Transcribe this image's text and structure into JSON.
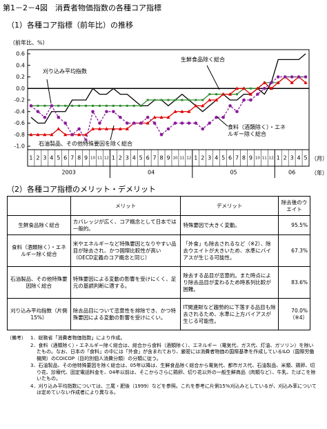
{
  "header": {
    "title": "第1－2－4図　消費者物価指数の各種コア指標"
  },
  "section1": {
    "heading": "（1）各種コア指標（前年比）の推移"
  },
  "chart_data": {
    "type": "line",
    "y_label": "（前年比、%）",
    "x_unit": "（月）",
    "year_unit": "（年）",
    "year_labels": [
      "2003",
      "04",
      "05",
      "06"
    ],
    "categories": [
      "1",
      "2",
      "3",
      "4",
      "5",
      "6",
      "7",
      "8",
      "9",
      "10",
      "11",
      "12",
      "1",
      "2",
      "3",
      "4",
      "5",
      "6",
      "7",
      "8",
      "9",
      "10",
      "11",
      "12",
      "1",
      "2",
      "3",
      "4",
      "5",
      "6",
      "7",
      "8",
      "9",
      "10",
      "11",
      "12",
      "1",
      "2",
      "3",
      "4",
      "5"
    ],
    "ylim": [
      -1,
      0.6
    ],
    "yticks": [
      {
        "value": -1,
        "label": "-1.0"
      },
      -0.8,
      -0.6,
      -0.4,
      -0.2,
      {
        "value": 0,
        "label": "0.0"
      },
      0.2,
      0.4,
      0.6
    ],
    "series": [
      {
        "name": "生鮮食品除く総合",
        "color": "#000000",
        "marker": "none",
        "dash": false,
        "values": [
          -0.5,
          -0.6,
          -0.6,
          -0.4,
          -0.4,
          -0.4,
          -0.2,
          -0.2,
          -0.2,
          0.0,
          -0.1,
          -0.1,
          0.0,
          -0.1,
          -0.1,
          -0.2,
          -0.3,
          -0.3,
          -0.2,
          -0.2,
          -0.3,
          -0.2,
          -0.1,
          -0.2,
          -0.3,
          -0.4,
          -0.3,
          -0.2,
          -0.1,
          -0.2,
          -0.2,
          -0.1,
          -0.1,
          0.0,
          -0.1,
          0.1,
          0.5,
          0.5,
          0.5,
          0.5,
          0.6
        ]
      },
      {
        "name": "刈り込み平均指数",
        "color": "#2e8b2e",
        "marker": "square",
        "dash": false,
        "values": [
          -0.3,
          -0.3,
          -0.3,
          -0.3,
          -0.3,
          -0.3,
          -0.3,
          -0.3,
          -0.3,
          -0.3,
          -0.3,
          -0.3,
          -0.3,
          -0.3,
          -0.3,
          -0.3,
          -0.3,
          -0.2,
          -0.2,
          -0.2,
          -0.2,
          -0.2,
          -0.2,
          -0.2,
          -0.2,
          -0.2,
          -0.1,
          -0.1,
          -0.1,
          -0.1,
          -0.1,
          0.0,
          0.0,
          0.0,
          0.1,
          0.1,
          0.1,
          0.2,
          0.2,
          0.2,
          0.2
        ]
      },
      {
        "name": "食料（酒類除く）・エネルギー除く総合",
        "color": "#e00000",
        "marker": "triangle",
        "dash": false,
        "values": [
          -0.8,
          -0.8,
          -0.8,
          -0.8,
          -0.7,
          -0.8,
          -0.8,
          -0.8,
          -0.8,
          -0.7,
          -0.7,
          -0.7,
          -0.7,
          -0.7,
          -0.7,
          -0.6,
          -0.6,
          -0.6,
          -0.5,
          -0.5,
          -0.5,
          -0.4,
          -0.4,
          -0.4,
          -0.3,
          -0.3,
          -0.2,
          -0.2,
          -0.1,
          -0.1,
          0.0,
          0.0,
          -0.1,
          0.0,
          0.1,
          0.0,
          0.1,
          0.2,
          0.1,
          0.2,
          0.1
        ]
      },
      {
        "name": "石油製品、その他特殊要因を除く総合",
        "color": "#8b1a9b",
        "marker": "circle",
        "dash": true,
        "values": [
          -0.3,
          -0.4,
          -0.5,
          -0.3,
          -0.5,
          -0.6,
          -0.8,
          -0.7,
          -0.9,
          -0.4,
          -0.6,
          -0.4,
          -0.4,
          -0.5,
          -0.6,
          -0.6,
          -0.6,
          -0.5,
          -0.6,
          -0.8,
          -0.7,
          -0.6,
          -0.6,
          -0.6,
          -0.6,
          -0.7,
          -0.6,
          -0.5,
          -0.5,
          -0.3,
          -0.4,
          -0.2,
          -0.2,
          -0.1,
          0.0,
          0.1,
          0.2,
          0.2,
          0.2,
          0.2,
          0.2
        ]
      }
    ]
  },
  "section2": {
    "heading": "（2）各種コア指標のメリット・デメリット"
  },
  "table": {
    "header": [
      "メリット",
      "デメリット",
      "除去後のウエイト"
    ],
    "rows": [
      [
        "生鮮食品除く総合",
        "カバレッジが広く、コア概念として日本では一般的。",
        "特殊要因で大きく変動。",
        "95.5%"
      ],
      [
        "食料（酒類除く）・エネルギー除く総合",
        "米やエネルギーなど特殊要因となりやすい品目が除去され、かつ国際比較性が高い（OECD定義のコア概念と同じ）",
        "「外食」も除去されるなど（※2）、除去ウエイトが大きいため、水準にバイアスが生じる可能性。",
        "67.3%"
      ],
      [
        "石油製品、その他特殊要因除く総合",
        "特殊要因による変動の影響を受けにくく、足元の基調判断に適する。",
        "除去する品目が恣意的。また時点により除去品目が変わるため時系列比較が困難。",
        "83.6%"
      ],
      [
        "刈り込み平均指数（片側15%）",
        "除去品目について恣意性を排除でき、かつ特殊要因による変動の影響を受けにくい。",
        "IT関連財など趨勢的に下落する品目も除去されるため、水準に上方バイアスが生じる可能性。",
        "70.0%（※4）"
      ]
    ]
  },
  "notes": {
    "label": "（備考）",
    "items": [
      "1．総務省「消費者物価指数」により作成。",
      "2．食料（酒類除く）・エネルギー除く総合は、総合から食料（酒類除く）、エネルギー（電気代、ガス代、灯油、ガソリン）を除いたもの。なお、日本の「食料」の中には「外食」が含まれており、厳密には消費者物価の国際基準を作成しているILO（国際労働機関）のCOICOP（目的別個人消費分類）の分類に従う。",
      "3．石油製品、その他特殊要因を除く総合は、05年以降は、生鮮食品除く総合から電気代、都市ガス代、石油製品、米類、鶏卵、切り花、診療代、固定電話料金を、04年以前は、そこからさらに鶏卵、切り花以外の一般生鮮商品（肉類など）、牛乳、たばこを除いたもの。",
      "4．刈り込み平均指数については、三尾・肥後（1999）などを参照。これを参考に片側15%刈込みとしているが、刈込み率については定めていない作成者により異なる。"
    ]
  }
}
